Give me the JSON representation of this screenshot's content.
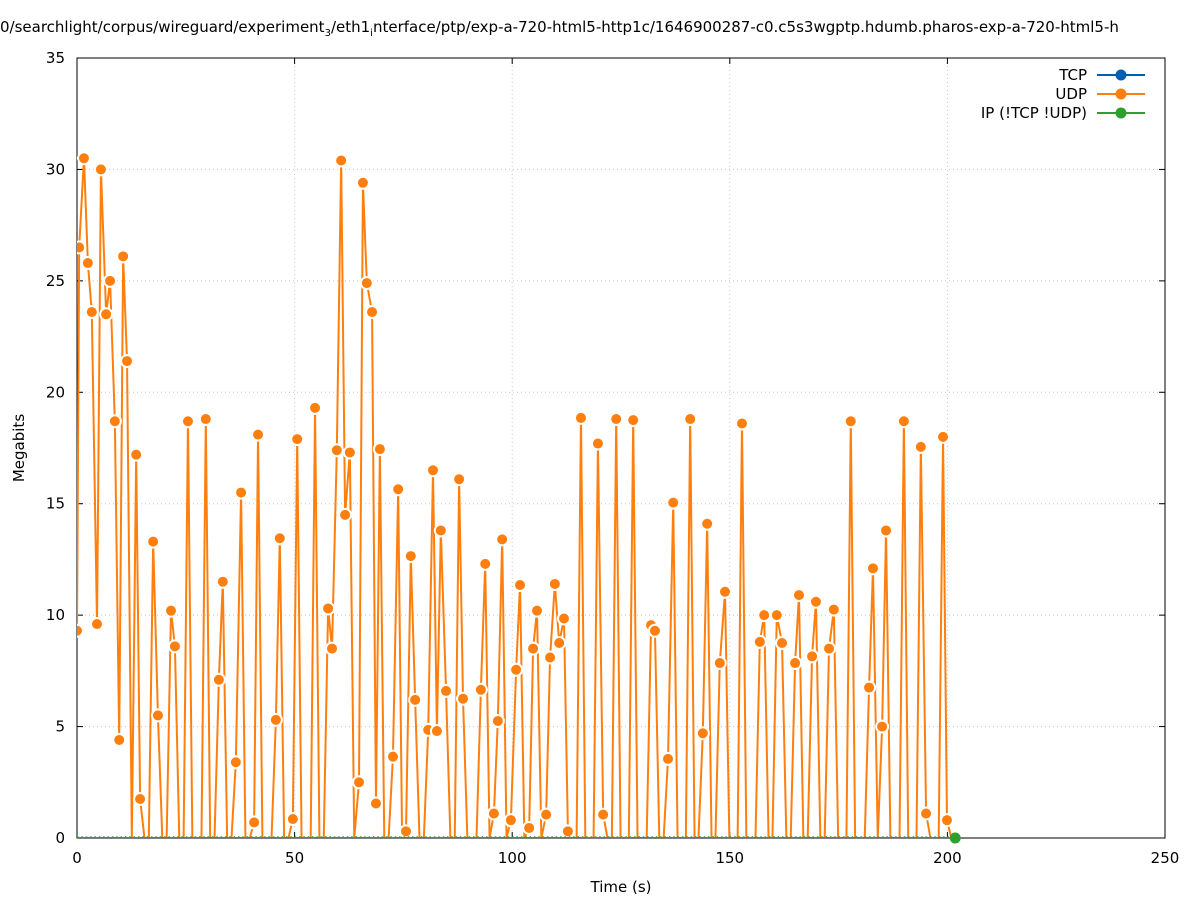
{
  "chart_data": {
    "type": "line",
    "title_parts": [
      {
        "text": "0/searchlight/corpus/wireguard/experiment"
      },
      {
        "text": "3",
        "sub": true
      },
      {
        "text": "/eth1"
      },
      {
        "text": "i",
        "sub": true
      },
      {
        "text": "nterface/ptp/exp-a-720-html5-http1c/1646900287-c0.c5s3wgptp.hdumb.pharos-exp-a-720-html5-h"
      }
    ],
    "xlabel": "Time (s)",
    "ylabel": "Megabits",
    "xlim": [
      0,
      250
    ],
    "ylim": [
      0,
      35
    ],
    "xticks": [
      0,
      50,
      100,
      150,
      200,
      250
    ],
    "yticks": [
      0,
      5,
      10,
      15,
      20,
      25,
      30,
      35
    ],
    "grid": true,
    "legend_placement": "top-right",
    "series": [
      {
        "name": "TCP",
        "color": "#0060ad",
        "points": []
      },
      {
        "name": "UDP",
        "color": "#ff7f0e",
        "points": [
          [
            0,
            9.3
          ],
          [
            0.5,
            26.5
          ],
          [
            1.6,
            30.5
          ],
          [
            2.5,
            25.8
          ],
          [
            3.4,
            23.6
          ],
          [
            4.6,
            9.6
          ],
          [
            5.5,
            30
          ],
          [
            6.7,
            23.5
          ],
          [
            7.6,
            25
          ],
          [
            8.7,
            18.7
          ],
          [
            9.7,
            4.4
          ],
          [
            10.6,
            26.1
          ],
          [
            11.5,
            21.4
          ],
          [
            12.6,
            0
          ],
          [
            13.6,
            17.2
          ],
          [
            14.5,
            1.75
          ],
          [
            15.5,
            0
          ],
          [
            16.5,
            0
          ],
          [
            17.5,
            13.3
          ],
          [
            18.6,
            5.5
          ],
          [
            19.6,
            0
          ],
          [
            20.6,
            0
          ],
          [
            21.6,
            10.2
          ],
          [
            22.5,
            8.6
          ],
          [
            23.5,
            0
          ],
          [
            24.5,
            0
          ],
          [
            25.5,
            18.7
          ],
          [
            26.5,
            0
          ],
          [
            28.6,
            0
          ],
          [
            29.6,
            18.8
          ],
          [
            30.6,
            0
          ],
          [
            31.6,
            0
          ],
          [
            32.6,
            7.1
          ],
          [
            33.5,
            11.5
          ],
          [
            34.5,
            0
          ],
          [
            35.5,
            0
          ],
          [
            36.5,
            3.4
          ],
          [
            37.7,
            15.5
          ],
          [
            38.7,
            0
          ],
          [
            39.7,
            0
          ],
          [
            40.7,
            0.7
          ],
          [
            41.6,
            18.1
          ],
          [
            42.6,
            0
          ],
          [
            44.7,
            0
          ],
          [
            45.7,
            5.3
          ],
          [
            46.6,
            13.45
          ],
          [
            47.6,
            0
          ],
          [
            48.6,
            0
          ],
          [
            49.6,
            0.85
          ],
          [
            50.6,
            17.9
          ],
          [
            51.6,
            0
          ],
          [
            53.7,
            0
          ],
          [
            54.7,
            19.3
          ],
          [
            55.7,
            0
          ],
          [
            56.7,
            0
          ],
          [
            57.7,
            10.3
          ],
          [
            58.6,
            8.5
          ],
          [
            59.7,
            17.4
          ],
          [
            60.7,
            30.4
          ],
          [
            61.6,
            14.5
          ],
          [
            62.7,
            17.3
          ],
          [
            63.7,
            0
          ],
          [
            64.8,
            2.5
          ],
          [
            65.7,
            29.4
          ],
          [
            66.6,
            24.9
          ],
          [
            67.8,
            23.6
          ],
          [
            68.7,
            1.55
          ],
          [
            69.6,
            17.45
          ],
          [
            70.6,
            0
          ],
          [
            71.6,
            0
          ],
          [
            72.6,
            3.65
          ],
          [
            73.8,
            15.65
          ],
          [
            74.7,
            0
          ],
          [
            75.6,
            0.3
          ],
          [
            76.7,
            12.65
          ],
          [
            77.7,
            6.2
          ],
          [
            78.7,
            0
          ],
          [
            79.7,
            0
          ],
          [
            80.7,
            4.85
          ],
          [
            81.8,
            16.5
          ],
          [
            82.7,
            4.8
          ],
          [
            83.6,
            13.8
          ],
          [
            84.8,
            6.6
          ],
          [
            85.8,
            0
          ],
          [
            86.8,
            0
          ],
          [
            87.8,
            16.1
          ],
          [
            88.7,
            6.25
          ],
          [
            89.7,
            0
          ],
          [
            91.8,
            0
          ],
          [
            92.8,
            6.65
          ],
          [
            93.8,
            12.3
          ],
          [
            94.8,
            0
          ],
          [
            95.8,
            1.1
          ],
          [
            96.7,
            5.25
          ],
          [
            97.7,
            13.4
          ],
          [
            98.7,
            0
          ],
          [
            99.7,
            0.8
          ],
          [
            100.9,
            7.55
          ],
          [
            101.8,
            11.35
          ],
          [
            102.8,
            0
          ],
          [
            103.9,
            0.45
          ],
          [
            104.8,
            8.5
          ],
          [
            105.7,
            10.2
          ],
          [
            106.7,
            0
          ],
          [
            107.8,
            1.05
          ],
          [
            108.7,
            8.1
          ],
          [
            109.8,
            11.4
          ],
          [
            110.8,
            8.75
          ],
          [
            111.9,
            9.85
          ],
          [
            112.8,
            0.3
          ],
          [
            113.8,
            0
          ],
          [
            114.8,
            0
          ],
          [
            115.8,
            18.85
          ],
          [
            116.8,
            0
          ],
          [
            118.7,
            0
          ],
          [
            119.7,
            17.7
          ],
          [
            120.9,
            1.05
          ],
          [
            121.9,
            0
          ],
          [
            122.9,
            0
          ],
          [
            123.9,
            18.8
          ],
          [
            124.9,
            0
          ],
          [
            126.8,
            0
          ],
          [
            127.8,
            18.75
          ],
          [
            128.8,
            0
          ],
          [
            130.9,
            0
          ],
          [
            131.9,
            9.55
          ],
          [
            132.8,
            9.3
          ],
          [
            133.8,
            0
          ],
          [
            134.8,
            0
          ],
          [
            135.8,
            3.55
          ],
          [
            137,
            15.05
          ],
          [
            138,
            0
          ],
          [
            139.9,
            0
          ],
          [
            140.9,
            18.8
          ],
          [
            141.9,
            0
          ],
          [
            142.8,
            0
          ],
          [
            143.8,
            4.7
          ],
          [
            144.8,
            14.1
          ],
          [
            145.8,
            0
          ],
          [
            146.7,
            0
          ],
          [
            147.7,
            7.85
          ],
          [
            148.9,
            11.05
          ],
          [
            149.9,
            0
          ],
          [
            151.8,
            0
          ],
          [
            152.8,
            18.6
          ],
          [
            153.8,
            0
          ],
          [
            155.9,
            0
          ],
          [
            156.9,
            8.8
          ],
          [
            157.9,
            10
          ],
          [
            158.9,
            0
          ],
          [
            159.8,
            0
          ],
          [
            160.8,
            10
          ],
          [
            162,
            8.75
          ],
          [
            163,
            0
          ],
          [
            164,
            0
          ],
          [
            165,
            7.85
          ],
          [
            165.9,
            10.9
          ],
          [
            166.9,
            0
          ],
          [
            167.9,
            0
          ],
          [
            168.9,
            8.15
          ],
          [
            169.8,
            10.6
          ],
          [
            170.8,
            0
          ],
          [
            171.8,
            0
          ],
          [
            172.8,
            8.5
          ],
          [
            173.9,
            10.25
          ],
          [
            174.9,
            0
          ],
          [
            176.8,
            0
          ],
          [
            177.8,
            18.7
          ],
          [
            178.8,
            0
          ],
          [
            181,
            0
          ],
          [
            182,
            6.75
          ],
          [
            182.9,
            12.1
          ],
          [
            184,
            0
          ],
          [
            185,
            5
          ],
          [
            185.9,
            13.8
          ],
          [
            186.9,
            0
          ],
          [
            189,
            0
          ],
          [
            190,
            18.7
          ],
          [
            191,
            0
          ],
          [
            192.9,
            0
          ],
          [
            193.9,
            17.55
          ],
          [
            195.1,
            1.1
          ],
          [
            196.1,
            0
          ],
          [
            198,
            0
          ],
          [
            199,
            18
          ],
          [
            199.9,
            0.8
          ],
          [
            200.9,
            0
          ]
        ]
      },
      {
        "name": "IP (!TCP  !UDP)",
        "color": "#2ca02c",
        "points": [
          [
            0,
            0
          ],
          [
            201.8,
            0
          ]
        ]
      }
    ]
  }
}
